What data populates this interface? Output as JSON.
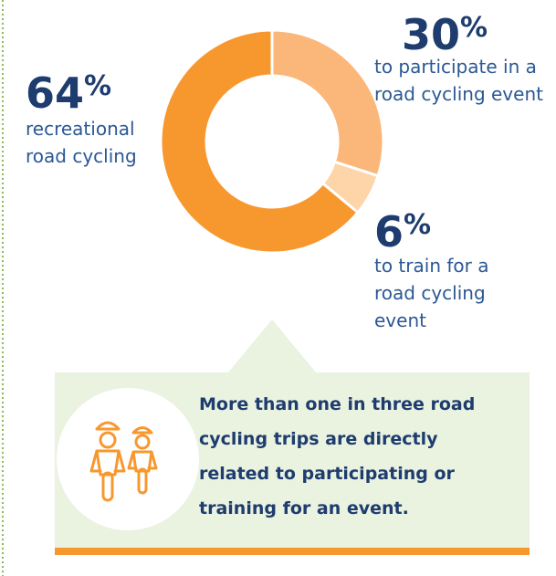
{
  "chart_data": {
    "type": "donut",
    "categories": [
      "to participate in a road cycling event",
      "to train for a road cycling event",
      "recreational road cycling"
    ],
    "values": [
      30,
      6,
      64
    ],
    "value_labels": [
      "30%",
      "6%",
      "64%"
    ],
    "colors": [
      "#fbb77a",
      "#fdd5a8",
      "#f7982f"
    ]
  },
  "callout": "More than one in three road cycling trips are directly related to participating or training for an event."
}
